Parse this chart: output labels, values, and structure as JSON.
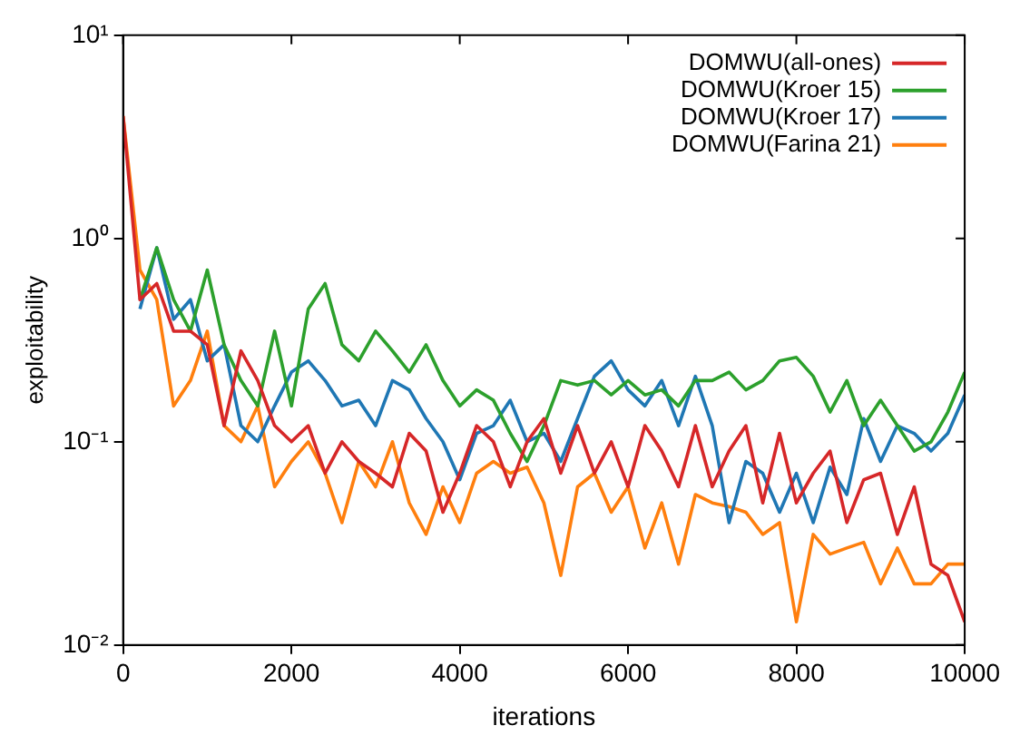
{
  "chart_data": {
    "type": "line",
    "xlabel": "iterations",
    "ylabel": "exploitability",
    "log": "y",
    "legend": "top right",
    "grid": false,
    "marker": "none",
    "line_style": "solid",
    "xlim": [
      0,
      10000
    ],
    "xticks": [
      0,
      2000,
      4000,
      6000,
      8000,
      10000
    ],
    "ylim": [
      0.01,
      10
    ],
    "yticks": [
      {
        "value": 0.01,
        "label": "10⁻²"
      },
      {
        "value": 0.1,
        "label": "10⁻¹"
      },
      {
        "value": 1,
        "label": "10⁰"
      },
      {
        "value": 10,
        "label": "10¹"
      }
    ],
    "x": [
      0,
      200,
      400,
      600,
      800,
      1000,
      1200,
      1400,
      1600,
      1800,
      2000,
      2200,
      2400,
      2600,
      2800,
      3000,
      3200,
      3400,
      3600,
      3800,
      4000,
      4200,
      4400,
      4600,
      4800,
      5000,
      5200,
      5400,
      5600,
      5800,
      6000,
      6200,
      6400,
      6600,
      6800,
      7000,
      7200,
      7400,
      7600,
      7800,
      8000,
      8200,
      8400,
      8600,
      8800,
      9000,
      9200,
      9400,
      9600,
      9800,
      10000
    ],
    "series": [
      {
        "name": "DOMWU(all-ones)",
        "color": "#d62728",
        "values": [
          4,
          0.5,
          0.6,
          0.35,
          0.35,
          0.3,
          0.12,
          0.28,
          0.2,
          0.12,
          0.1,
          0.12,
          0.07,
          0.1,
          0.08,
          0.07,
          0.06,
          0.11,
          0.09,
          0.045,
          0.07,
          0.12,
          0.1,
          0.06,
          0.1,
          0.13,
          0.07,
          0.12,
          0.07,
          0.1,
          0.06,
          0.12,
          0.09,
          0.06,
          0.12,
          0.06,
          0.09,
          0.12,
          0.05,
          0.11,
          0.05,
          0.07,
          0.09,
          0.04,
          0.065,
          0.07,
          0.035,
          0.06,
          0.025,
          0.022,
          0.013
        ]
      },
      {
        "name": "DOMWU(Kroer 15)",
        "color": "#2ca02c",
        "values": [
          null,
          0.5,
          0.9,
          0.5,
          0.35,
          0.7,
          0.3,
          0.2,
          0.15,
          0.35,
          0.15,
          0.45,
          0.6,
          0.3,
          0.25,
          0.35,
          0.28,
          0.22,
          0.3,
          0.2,
          0.15,
          0.18,
          0.16,
          0.11,
          0.08,
          0.12,
          0.2,
          0.19,
          0.2,
          0.17,
          0.2,
          0.17,
          0.18,
          0.15,
          0.2,
          0.2,
          0.22,
          0.18,
          0.2,
          0.25,
          0.26,
          0.21,
          0.14,
          0.2,
          0.12,
          0.16,
          0.12,
          0.09,
          0.1,
          0.14,
          0.22
        ]
      },
      {
        "name": "DOMWU(Kroer 17)",
        "color": "#1f77b4",
        "values": [
          null,
          0.45,
          0.9,
          0.4,
          0.5,
          0.25,
          0.3,
          0.12,
          0.1,
          0.15,
          0.22,
          0.25,
          0.2,
          0.15,
          0.16,
          0.12,
          0.2,
          0.18,
          0.13,
          0.1,
          0.065,
          0.11,
          0.12,
          0.16,
          0.1,
          0.11,
          0.08,
          0.13,
          0.21,
          0.25,
          0.18,
          0.15,
          0.2,
          0.12,
          0.21,
          0.12,
          0.04,
          0.08,
          0.07,
          0.045,
          0.07,
          0.04,
          0.075,
          0.055,
          0.13,
          0.08,
          0.12,
          0.11,
          0.09,
          0.11,
          0.17
        ]
      },
      {
        "name": "DOMWU(Farina 21)",
        "color": "#ff7f0e",
        "values": [
          4,
          0.7,
          0.5,
          0.15,
          0.2,
          0.35,
          0.12,
          0.1,
          0.15,
          0.06,
          0.08,
          0.1,
          0.07,
          0.04,
          0.08,
          0.06,
          0.1,
          0.05,
          0.035,
          0.06,
          0.04,
          0.07,
          0.08,
          0.07,
          0.075,
          0.05,
          0.022,
          0.06,
          0.07,
          0.045,
          0.06,
          0.03,
          0.05,
          0.025,
          0.055,
          0.05,
          0.048,
          0.045,
          0.035,
          0.04,
          0.013,
          0.035,
          0.028,
          0.03,
          0.032,
          0.02,
          0.03,
          0.02,
          0.02,
          0.025,
          0.025
        ]
      }
    ]
  }
}
